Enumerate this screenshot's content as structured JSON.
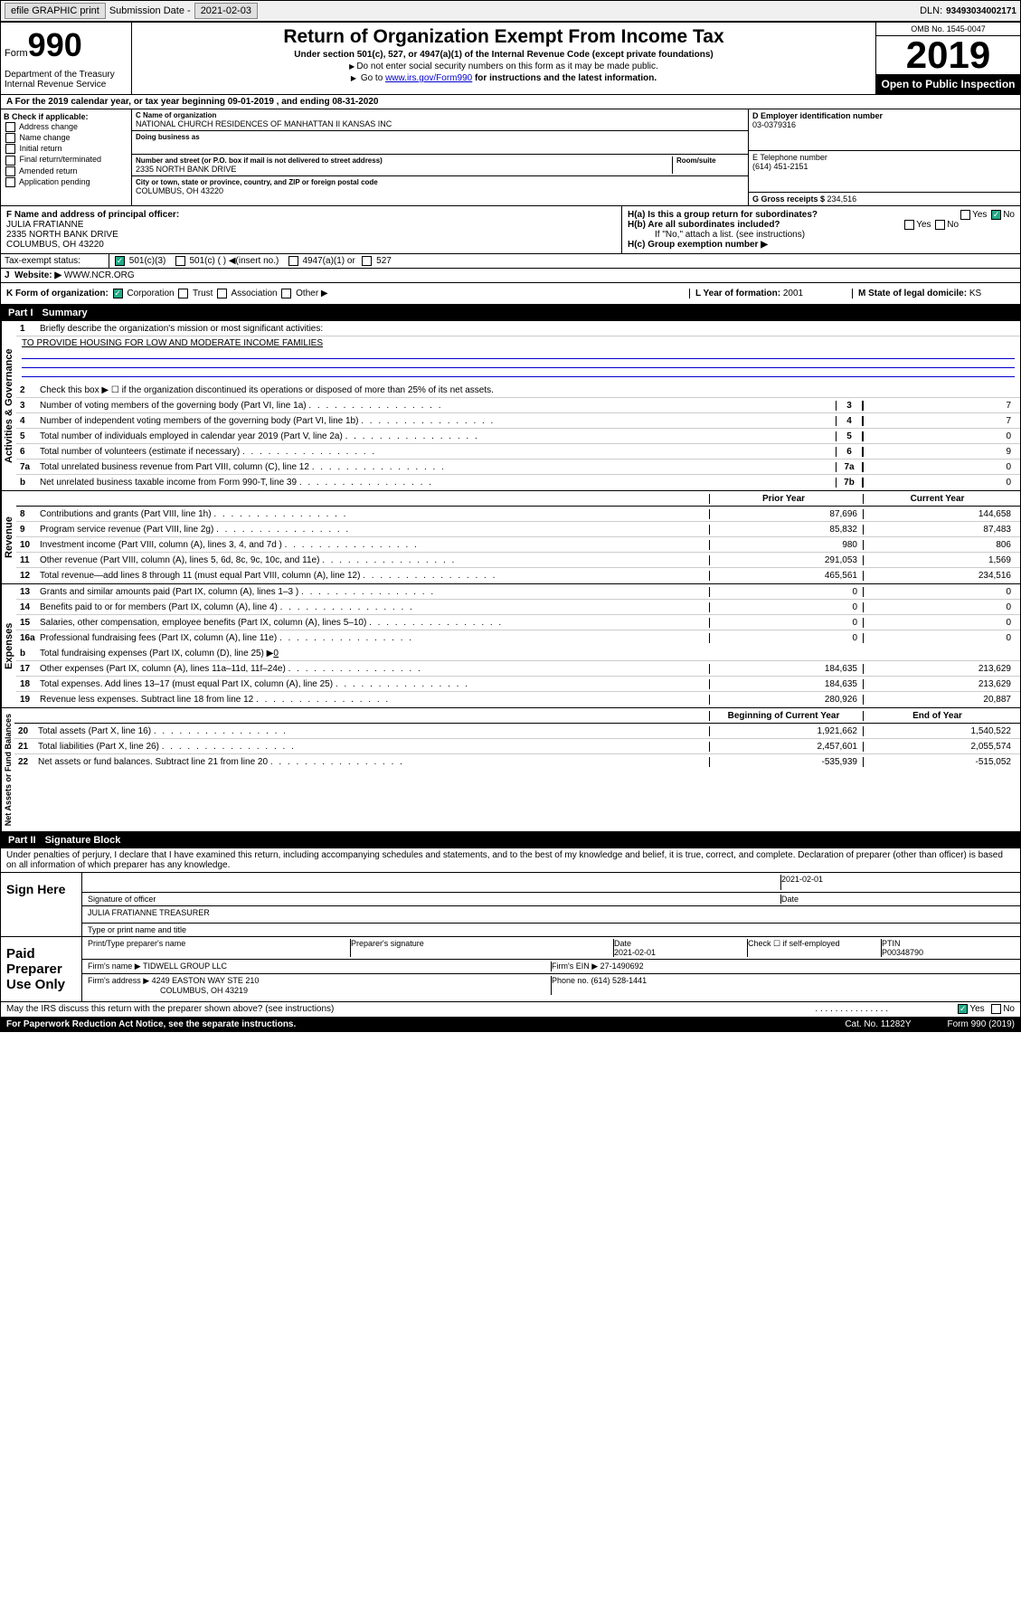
{
  "header": {
    "efile": "efile GRAPHIC print",
    "submission_label": "Submission Date - ",
    "submission_date": "2021-02-03",
    "dln_label": "DLN: ",
    "dln": "93493034002171"
  },
  "form": {
    "prefix": "Form",
    "number": "990",
    "dept": "Department of the Treasury\nInternal Revenue Service"
  },
  "title": {
    "main": "Return of Organization Exempt From Income Tax",
    "sub1": "Under section 501(c), 527, or 4947(a)(1) of the Internal Revenue Code (except private foundations)",
    "sub2": "Do not enter social security numbers on this form as it may be made public.",
    "sub3_pre": "Go to ",
    "sub3_link": "www.irs.gov/Form990",
    "sub3_post": " for instructions and the latest information."
  },
  "year_box": {
    "omb": "OMB No. 1545-0047",
    "year": "2019",
    "open": "Open to Public Inspection"
  },
  "tax_year": "For the 2019 calendar year, or tax year beginning 09-01-2019   , and ending 08-31-2020",
  "section_b": {
    "label": "B Check if applicable:",
    "items": [
      "Address change",
      "Name change",
      "Initial return",
      "Final return/terminated",
      "Amended return",
      "Application pending"
    ]
  },
  "section_c": {
    "name_label": "C Name of organization",
    "name": "NATIONAL CHURCH RESIDENCES OF MANHATTAN II KANSAS INC",
    "dba_label": "Doing business as",
    "addr_label": "Number and street (or P.O. box if mail is not delivered to street address)",
    "addr": "2335 NORTH BANK DRIVE",
    "room_label": "Room/suite",
    "city_label": "City or town, state or province, country, and ZIP or foreign postal code",
    "city": "COLUMBUS, OH  43220"
  },
  "section_d": {
    "label": "D Employer identification number",
    "ein": "03-0379316"
  },
  "section_e": {
    "label": "E Telephone number",
    "phone": "(614) 451-2151"
  },
  "section_g": {
    "label": "G Gross receipts $ ",
    "amount": "234,516"
  },
  "section_f": {
    "label": "F  Name and address of principal officer:",
    "name": "JULIA FRATIANNE",
    "addr1": "2335 NORTH BANK DRIVE",
    "addr2": "COLUMBUS, OH  43220"
  },
  "section_h": {
    "ha": "H(a)  Is this a group return for subordinates?",
    "hb": "H(b)  Are all subordinates included?",
    "hb_note": "If \"No,\" attach a list. (see instructions)",
    "hc": "H(c)  Group exemption number ▶",
    "yes": "Yes",
    "no": "No"
  },
  "tax_exempt": {
    "label": "Tax-exempt status:",
    "opt1": "501(c)(3)",
    "opt2": "501(c) (   ) ◀(insert no.)",
    "opt3": "4947(a)(1) or",
    "opt4": "527"
  },
  "website": {
    "label": "Website: ▶",
    "url": "WWW.NCR.ORG"
  },
  "section_k": {
    "label": "K Form of organization:",
    "opts": [
      "Corporation",
      "Trust",
      "Association",
      "Other ▶"
    ]
  },
  "section_l": {
    "label": "L Year of formation: ",
    "val": "2001"
  },
  "section_m": {
    "label": "M State of legal domicile: ",
    "val": "KS"
  },
  "part1": {
    "label": "Part I",
    "title": "Summary"
  },
  "summary": {
    "line1_label": "Briefly describe the organization's mission or most significant activities:",
    "line1_text": "TO PROVIDE HOUSING FOR LOW AND MODERATE INCOME FAMILIES",
    "line2": "Check this box ▶ ☐  if the organization discontinued its operations or disposed of more than 25% of its net assets.",
    "lines": [
      {
        "n": "3",
        "d": "Number of voting members of the governing body (Part VI, line 1a)",
        "box": "3",
        "v": "7"
      },
      {
        "n": "4",
        "d": "Number of independent voting members of the governing body (Part VI, line 1b)",
        "box": "4",
        "v": "7"
      },
      {
        "n": "5",
        "d": "Total number of individuals employed in calendar year 2019 (Part V, line 2a)",
        "box": "5",
        "v": "0"
      },
      {
        "n": "6",
        "d": "Total number of volunteers (estimate if necessary)",
        "box": "6",
        "v": "9"
      },
      {
        "n": "7a",
        "d": "Total unrelated business revenue from Part VIII, column (C), line 12",
        "box": "7a",
        "v": "0"
      },
      {
        "n": "b",
        "d": "Net unrelated business taxable income from Form 990-T, line 39",
        "box": "7b",
        "v": "0"
      }
    ],
    "col_headers": {
      "prior": "Prior Year",
      "current": "Current Year"
    },
    "revenue": [
      {
        "n": "8",
        "d": "Contributions and grants (Part VIII, line 1h)",
        "p": "87,696",
        "c": "144,658"
      },
      {
        "n": "9",
        "d": "Program service revenue (Part VIII, line 2g)",
        "p": "85,832",
        "c": "87,483"
      },
      {
        "n": "10",
        "d": "Investment income (Part VIII, column (A), lines 3, 4, and 7d )",
        "p": "980",
        "c": "806"
      },
      {
        "n": "11",
        "d": "Other revenue (Part VIII, column (A), lines 5, 6d, 8c, 9c, 10c, and 11e)",
        "p": "291,053",
        "c": "1,569"
      },
      {
        "n": "12",
        "d": "Total revenue—add lines 8 through 11 (must equal Part VIII, column (A), line 12)",
        "p": "465,561",
        "c": "234,516"
      }
    ],
    "expenses": [
      {
        "n": "13",
        "d": "Grants and similar amounts paid (Part IX, column (A), lines 1–3 )",
        "p": "0",
        "c": "0"
      },
      {
        "n": "14",
        "d": "Benefits paid to or for members (Part IX, column (A), line 4)",
        "p": "0",
        "c": "0"
      },
      {
        "n": "15",
        "d": "Salaries, other compensation, employee benefits (Part IX, column (A), lines 5–10)",
        "p": "0",
        "c": "0"
      },
      {
        "n": "16a",
        "d": "Professional fundraising fees (Part IX, column (A), line 11e)",
        "p": "0",
        "c": "0"
      }
    ],
    "line16b": {
      "n": "b",
      "d": "Total fundraising expenses (Part IX, column (D), line 25) ▶",
      "v": "0"
    },
    "expenses2": [
      {
        "n": "17",
        "d": "Other expenses (Part IX, column (A), lines 11a–11d, 11f–24e)",
        "p": "184,635",
        "c": "213,629"
      },
      {
        "n": "18",
        "d": "Total expenses. Add lines 13–17 (must equal Part IX, column (A), line 25)",
        "p": "184,635",
        "c": "213,629"
      },
      {
        "n": "19",
        "d": "Revenue less expenses. Subtract line 18 from line 12",
        "p": "280,926",
        "c": "20,887"
      }
    ],
    "bal_headers": {
      "begin": "Beginning of Current Year",
      "end": "End of Year"
    },
    "balances": [
      {
        "n": "20",
        "d": "Total assets (Part X, line 16)",
        "p": "1,921,662",
        "c": "1,540,522"
      },
      {
        "n": "21",
        "d": "Total liabilities (Part X, line 26)",
        "p": "2,457,601",
        "c": "2,055,574"
      },
      {
        "n": "22",
        "d": "Net assets or fund balances. Subtract line 21 from line 20",
        "p": "-535,939",
        "c": "-515,052"
      }
    ]
  },
  "vert_labels": {
    "gov": "Activities & Governance",
    "rev": "Revenue",
    "exp": "Expenses",
    "net": "Net Assets or Fund Balances"
  },
  "part2": {
    "label": "Part II",
    "title": "Signature Block"
  },
  "penalties": "Under penalties of perjury, I declare that I have examined this return, including accompanying schedules and statements, and to the best of my knowledge and belief, it is true, correct, and complete. Declaration of preparer (other than officer) is based on all information of which preparer has any knowledge.",
  "sign": {
    "label": "Sign Here",
    "sig_date": "2021-02-01",
    "sig_label": "Signature of officer",
    "date_label": "Date",
    "name": "JULIA FRATIANNE  TREASURER",
    "name_label": "Type or print name and title"
  },
  "paid": {
    "label": "Paid Preparer Use Only",
    "col1": "Print/Type preparer's name",
    "col2": "Preparer's signature",
    "col3_label": "Date",
    "col3": "2021-02-01",
    "col4": "Check ☐ if self-employed",
    "col5_label": "PTIN",
    "col5": "P00348790",
    "firm_label": "Firm's name    ▶ ",
    "firm": "TIDWELL GROUP LLC",
    "ein_label": "Firm's EIN ▶ ",
    "ein": "27-1490692",
    "addr_label": "Firm's address ▶ ",
    "addr": "4249 EASTON WAY STE 210",
    "addr2": "COLUMBUS, OH  43219",
    "phone_label": "Phone no. ",
    "phone": "(614) 528-1441"
  },
  "discuss": {
    "q": "May the IRS discuss this return with the preparer shown above? (see instructions)",
    "yes": "Yes",
    "no": "No"
  },
  "footer": {
    "paperwork": "For Paperwork Reduction Act Notice, see the separate instructions.",
    "cat": "Cat. No. 11282Y",
    "form": "Form 990 (2019)"
  }
}
